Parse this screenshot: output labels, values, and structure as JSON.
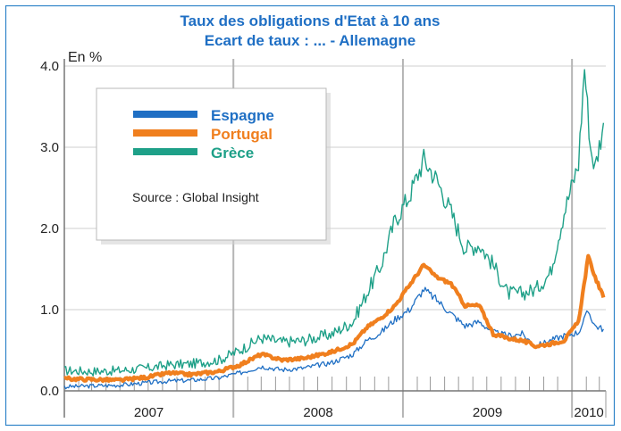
{
  "chart_data": {
    "type": "line",
    "title": "Taux des obligations d'Etat à 10 ans",
    "subtitle": "Ecart de taux : ... - Allemagne",
    "ylabel": "En %",
    "xlabel": "",
    "ylim": [
      0,
      4.0
    ],
    "xlim": [
      "2007-01-01",
      "2010-03-15"
    ],
    "y_ticks": [
      "0.0",
      "1.0",
      "2.0",
      "3.0",
      "4.0"
    ],
    "x_year_labels": [
      {
        "label": "2007",
        "year": 2007
      },
      {
        "label": "2008",
        "year": 2008
      },
      {
        "label": "2009",
        "year": 2009
      },
      {
        "label": "2010",
        "year": 2010
      }
    ],
    "grid": true,
    "legend_position": "top-left",
    "source": "Source : Global Insight",
    "series": [
      {
        "name": "Espagne",
        "color": "#1f6fc4",
        "points": [
          [
            "2007-01-01",
            0.05
          ],
          [
            "2007-03-01",
            0.06
          ],
          [
            "2007-05-01",
            0.07
          ],
          [
            "2007-07-01",
            0.1
          ],
          [
            "2007-08-15",
            0.12
          ],
          [
            "2007-10-01",
            0.13
          ],
          [
            "2007-12-01",
            0.16
          ],
          [
            "2008-01-15",
            0.22
          ],
          [
            "2008-03-01",
            0.3
          ],
          [
            "2008-04-15",
            0.26
          ],
          [
            "2008-06-01",
            0.28
          ],
          [
            "2008-08-01",
            0.35
          ],
          [
            "2008-09-15",
            0.45
          ],
          [
            "2008-10-15",
            0.62
          ],
          [
            "2008-11-15",
            0.72
          ],
          [
            "2008-12-15",
            0.88
          ],
          [
            "2009-01-15",
            1.0
          ],
          [
            "2009-02-15",
            1.25
          ],
          [
            "2009-03-15",
            1.12
          ],
          [
            "2009-04-15",
            0.95
          ],
          [
            "2009-05-15",
            0.8
          ],
          [
            "2009-06-15",
            0.85
          ],
          [
            "2009-07-15",
            0.72
          ],
          [
            "2009-08-15",
            0.68
          ],
          [
            "2009-09-15",
            0.7
          ],
          [
            "2009-10-15",
            0.55
          ],
          [
            "2009-11-15",
            0.62
          ],
          [
            "2009-12-15",
            0.68
          ],
          [
            "2010-01-15",
            0.72
          ],
          [
            "2010-02-05",
            0.98
          ],
          [
            "2010-02-20",
            0.8
          ],
          [
            "2010-03-10",
            0.76
          ]
        ]
      },
      {
        "name": "Portugal",
        "color": "#f07f1e",
        "points": [
          [
            "2007-01-01",
            0.15
          ],
          [
            "2007-03-01",
            0.14
          ],
          [
            "2007-05-01",
            0.13
          ],
          [
            "2007-07-01",
            0.17
          ],
          [
            "2007-08-15",
            0.22
          ],
          [
            "2007-10-01",
            0.2
          ],
          [
            "2007-12-01",
            0.24
          ],
          [
            "2008-01-15",
            0.32
          ],
          [
            "2008-03-01",
            0.45
          ],
          [
            "2008-04-15",
            0.38
          ],
          [
            "2008-06-01",
            0.4
          ],
          [
            "2008-08-01",
            0.48
          ],
          [
            "2008-09-15",
            0.58
          ],
          [
            "2008-10-15",
            0.78
          ],
          [
            "2008-11-15",
            0.9
          ],
          [
            "2008-12-15",
            1.05
          ],
          [
            "2009-01-15",
            1.3
          ],
          [
            "2009-02-15",
            1.55
          ],
          [
            "2009-03-15",
            1.4
          ],
          [
            "2009-04-15",
            1.32
          ],
          [
            "2009-05-15",
            1.05
          ],
          [
            "2009-06-15",
            1.05
          ],
          [
            "2009-07-15",
            0.7
          ],
          [
            "2009-08-15",
            0.65
          ],
          [
            "2009-09-15",
            0.62
          ],
          [
            "2009-10-15",
            0.55
          ],
          [
            "2009-11-15",
            0.58
          ],
          [
            "2009-12-15",
            0.62
          ],
          [
            "2010-01-15",
            0.85
          ],
          [
            "2010-02-05",
            1.65
          ],
          [
            "2010-02-20",
            1.4
          ],
          [
            "2010-03-10",
            1.15
          ]
        ]
      },
      {
        "name": "Grèce",
        "color": "#1ea088",
        "points": [
          [
            "2007-01-01",
            0.25
          ],
          [
            "2007-03-01",
            0.24
          ],
          [
            "2007-05-01",
            0.25
          ],
          [
            "2007-07-01",
            0.28
          ],
          [
            "2007-08-15",
            0.32
          ],
          [
            "2007-10-01",
            0.33
          ],
          [
            "2007-12-01",
            0.38
          ],
          [
            "2008-01-15",
            0.5
          ],
          [
            "2008-03-01",
            0.65
          ],
          [
            "2008-04-15",
            0.6
          ],
          [
            "2008-06-01",
            0.62
          ],
          [
            "2008-08-01",
            0.7
          ],
          [
            "2008-09-15",
            0.85
          ],
          [
            "2008-10-15",
            1.2
          ],
          [
            "2008-11-15",
            1.55
          ],
          [
            "2008-12-15",
            2.1
          ],
          [
            "2009-01-15",
            2.4
          ],
          [
            "2009-02-15",
            2.85
          ],
          [
            "2009-03-15",
            2.6
          ],
          [
            "2009-04-15",
            2.2
          ],
          [
            "2009-05-15",
            1.75
          ],
          [
            "2009-06-15",
            1.8
          ],
          [
            "2009-07-15",
            1.55
          ],
          [
            "2009-08-15",
            1.2
          ],
          [
            "2009-09-15",
            1.2
          ],
          [
            "2009-10-15",
            1.25
          ],
          [
            "2009-11-15",
            1.45
          ],
          [
            "2009-12-15",
            2.2
          ],
          [
            "2010-01-15",
            2.8
          ],
          [
            "2010-01-28",
            4.0
          ],
          [
            "2010-02-10",
            3.0
          ],
          [
            "2010-02-20",
            2.75
          ],
          [
            "2010-03-10",
            3.3
          ]
        ]
      }
    ]
  }
}
